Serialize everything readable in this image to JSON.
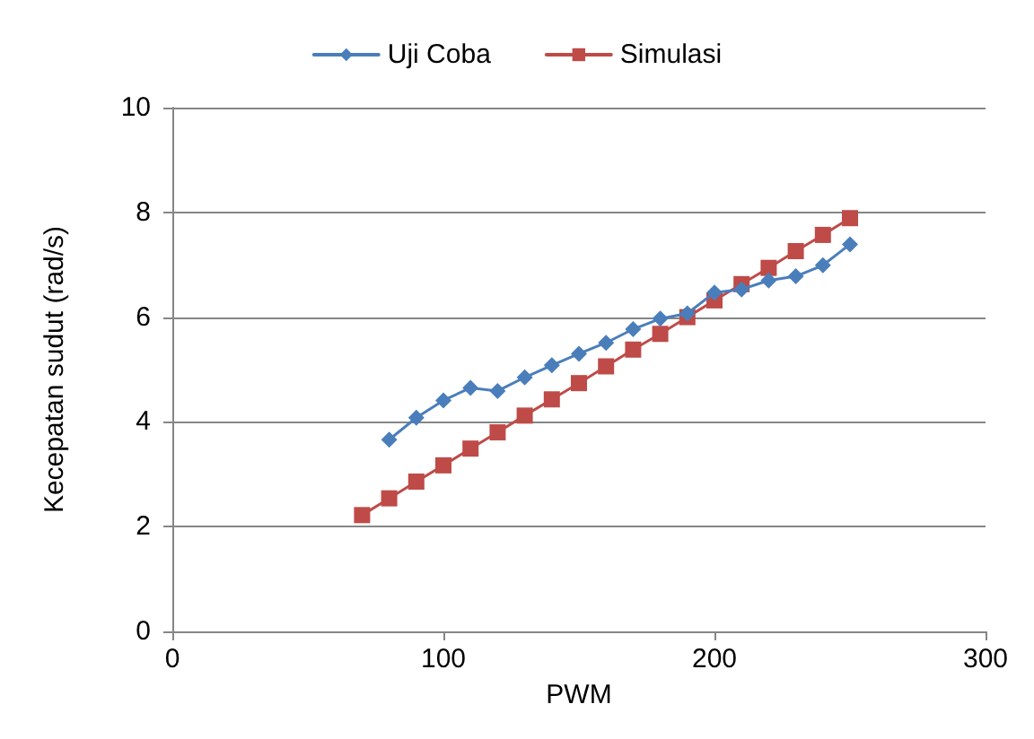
{
  "chart_data": {
    "type": "line",
    "xlabel": "PWM",
    "ylabel": "Kecepatan sudut (rad/s)",
    "xlim": [
      0,
      300
    ],
    "xticks": [
      0,
      100,
      200,
      300
    ],
    "ylim": [
      0,
      10
    ],
    "yticks": [
      0,
      2,
      4,
      6,
      8,
      10
    ],
    "grid": "y",
    "legend": "top",
    "line_style": "solid",
    "series": [
      {
        "name": "Uji Coba",
        "color": "#4a7ebb",
        "marker": "diamond",
        "x": [
          80,
          90,
          100,
          110,
          120,
          130,
          140,
          150,
          160,
          170,
          180,
          190,
          200,
          210,
          220,
          230,
          240,
          250
        ],
        "values": [
          3.66,
          4.08,
          4.41,
          4.65,
          4.59,
          4.85,
          5.08,
          5.3,
          5.51,
          5.77,
          5.97,
          6.07,
          6.47,
          6.53,
          6.7,
          6.78,
          6.99,
          7.39
        ]
      },
      {
        "name": "Simulasi",
        "color": "#be4b48",
        "marker": "square",
        "x": [
          70,
          80,
          90,
          100,
          110,
          120,
          130,
          140,
          150,
          160,
          170,
          180,
          190,
          200,
          210,
          220,
          230,
          240,
          250
        ],
        "values": [
          2.22,
          2.54,
          2.86,
          3.17,
          3.49,
          3.8,
          4.12,
          4.43,
          4.74,
          5.06,
          5.38,
          5.68,
          6.0,
          6.32,
          6.63,
          6.94,
          7.26,
          7.57,
          7.89
        ]
      }
    ]
  }
}
